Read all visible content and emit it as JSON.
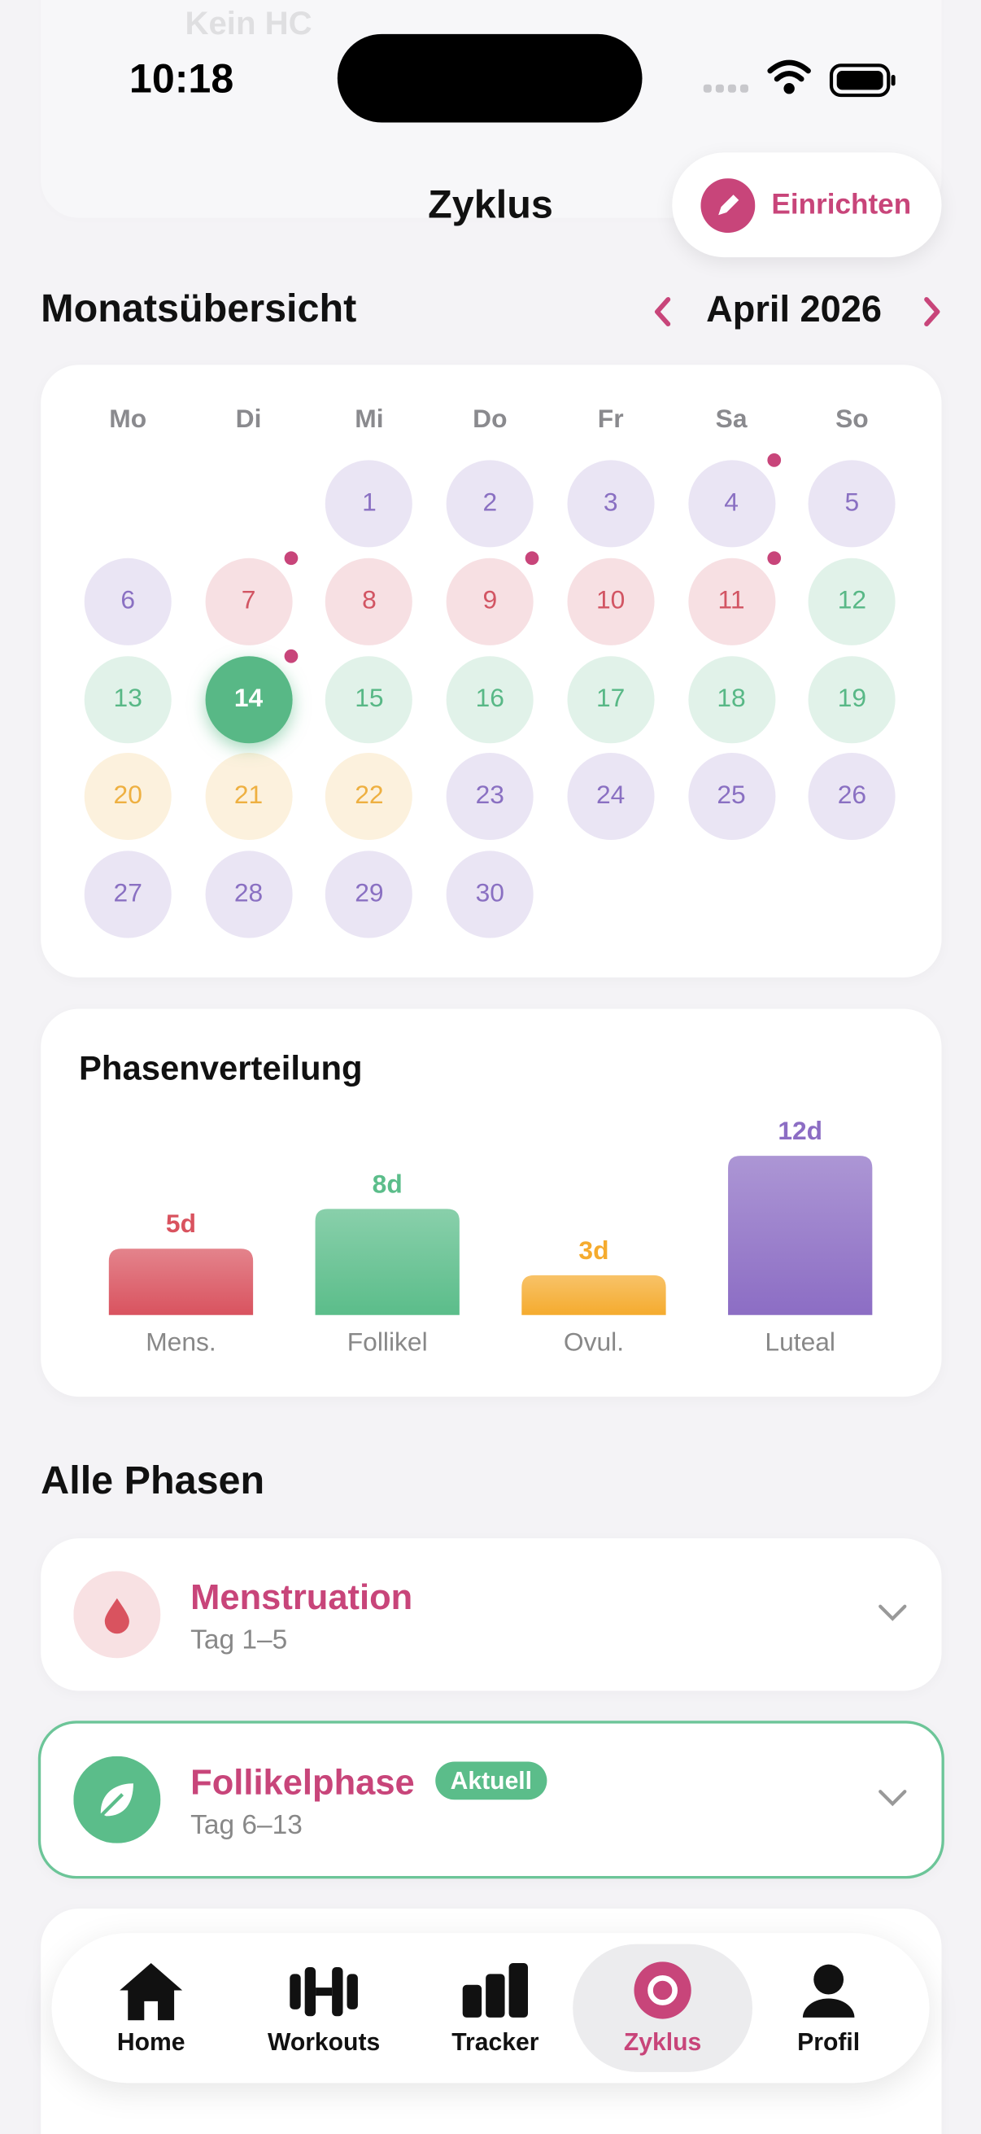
{
  "status_bar": {
    "time": "10:18"
  },
  "background_card": {
    "title": "Kein HC"
  },
  "header": {
    "title": "Zyklus",
    "action": "Einrichten"
  },
  "month": {
    "title": "Monatsübersicht",
    "label": "April 2026"
  },
  "calendar": {
    "weekdays": [
      "Mo",
      "Di",
      "Mi",
      "Do",
      "Fr",
      "Sa",
      "So"
    ],
    "days": [
      null,
      null,
      {
        "label": 1,
        "color": "#8a70c2"
      },
      {
        "label": 2,
        "color": "#8a70c2"
      },
      {
        "label": 3,
        "color": "#8a70c2"
      },
      {
        "label": 4,
        "color": "#8a70c2",
        "dot": true
      },
      {
        "label": 5,
        "color": "#8a70c2"
      },
      {
        "label": 6,
        "color": "#8a70c2"
      },
      {
        "label": 7,
        "color": "#d25563",
        "dot": true
      },
      {
        "label": 8,
        "color": "#d25563"
      },
      {
        "label": 9,
        "color": "#d25563",
        "dot": true
      },
      {
        "label": 10,
        "color": "#d25563"
      },
      {
        "label": 11,
        "color": "#d25563",
        "dot": true
      },
      {
        "label": 12,
        "color": "#58b886"
      },
      {
        "label": 13,
        "color": "#58b886"
      },
      {
        "label": 14,
        "color": "#58b886",
        "dot": true,
        "selected": true
      },
      {
        "label": 15,
        "color": "#58b886"
      },
      {
        "label": 16,
        "color": "#58b886"
      },
      {
        "label": 17,
        "color": "#58b886"
      },
      {
        "label": 18,
        "color": "#58b886"
      },
      {
        "label": 19,
        "color": "#58b886"
      },
      {
        "label": 20,
        "color": "#eeb041"
      },
      {
        "label": 21,
        "color": "#eeb041"
      },
      {
        "label": 22,
        "color": "#eeb041"
      },
      {
        "label": 23,
        "color": "#8a70c2"
      },
      {
        "label": 24,
        "color": "#8a70c2"
      },
      {
        "label": 25,
        "color": "#8a70c2"
      },
      {
        "label": 26,
        "color": "#8a70c2"
      },
      {
        "label": 27,
        "color": "#8a70c2"
      },
      {
        "label": 28,
        "color": "#8a70c2"
      },
      {
        "label": 29,
        "color": "#8a70c2"
      },
      {
        "label": 30,
        "color": "#8a70c2"
      }
    ],
    "dot_color": "#c8457a"
  },
  "chart_data": {
    "type": "bar",
    "title": "Phasenverteilung",
    "categories": [
      "Mens.",
      "Follikel",
      "Ovul.",
      "Luteal"
    ],
    "values": [
      5,
      8,
      3,
      12
    ],
    "value_labels": [
      "5d",
      "8d",
      "3d",
      "12d"
    ],
    "colors": [
      "#d9535f",
      "#5bbd8a",
      "#f5ab2e",
      "#8c6dc4"
    ],
    "ylim": [
      0,
      12
    ]
  },
  "phases": {
    "title": "Alle Phasen",
    "items": [
      {
        "name": "Menstruation",
        "days": "Tag 1–5"
      },
      {
        "name": "Follikelphase",
        "badge": "Aktuell",
        "days": "Tag 6–13"
      }
    ]
  },
  "tab_bar": {
    "items": [
      "Home",
      "Workouts",
      "Tracker",
      "Zyklus",
      "Profil"
    ],
    "selected": 3
  }
}
